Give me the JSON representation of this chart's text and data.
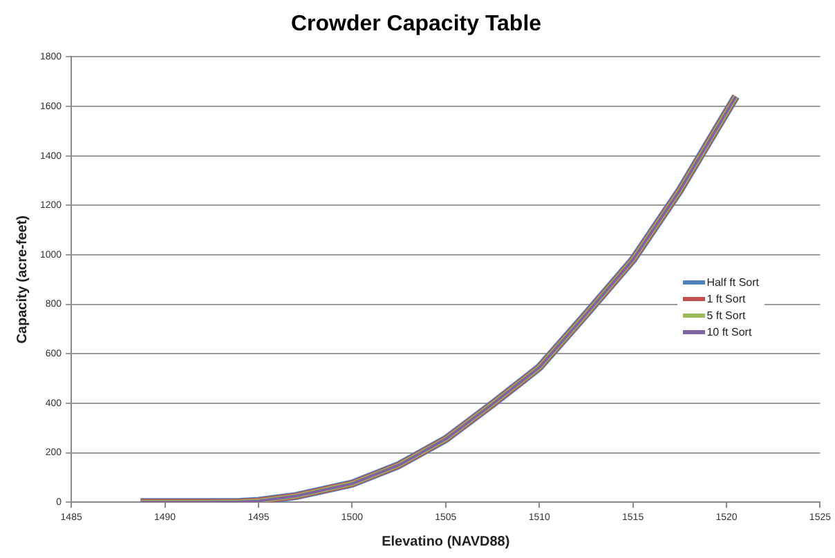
{
  "chart_data": {
    "type": "line",
    "title": "Crowder Capacity Table",
    "xlabel": "Elevatino (NAVD88)",
    "ylabel": "Capacity (acre-feet)",
    "xlim": [
      1485,
      1525
    ],
    "xticks": [
      1485,
      1490,
      1495,
      1500,
      1505,
      1510,
      1515,
      1520,
      1525
    ],
    "ylim": [
      0,
      1800
    ],
    "yticks": [
      0,
      200,
      400,
      600,
      800,
      1000,
      1200,
      1400,
      1600,
      1800
    ],
    "grid": "y",
    "legend": "right",
    "marker": "none",
    "line_style": "solid",
    "x": [
      1488.7,
      1490,
      1492,
      1494,
      1495,
      1497,
      1500,
      1502.5,
      1505,
      1507.5,
      1510,
      1512.5,
      1515,
      1517.5,
      1520.5
    ],
    "series": [
      {
        "name": "Half ft Sort",
        "color": "#4f81bd",
        "values": [
          0,
          0,
          0,
          1,
          5,
          25,
          75,
          150,
          255,
          397,
          545,
          760,
          980,
          1260,
          1640
        ]
      },
      {
        "name": "1 ft Sort",
        "color": "#c0504d",
        "values": [
          0,
          0,
          0,
          1,
          5,
          25,
          75,
          150,
          255,
          397,
          545,
          760,
          980,
          1260,
          1640
        ]
      },
      {
        "name": "5 ft Sort",
        "color": "#9bbb59",
        "values": [
          0,
          0,
          0,
          1,
          5,
          25,
          75,
          150,
          255,
          397,
          545,
          760,
          980,
          1260,
          1640
        ]
      },
      {
        "name": "10 ft Sort",
        "color": "#8064a2",
        "values": [
          0,
          0,
          0,
          1,
          5,
          25,
          75,
          150,
          255,
          397,
          545,
          760,
          980,
          1260,
          1640
        ]
      }
    ]
  }
}
